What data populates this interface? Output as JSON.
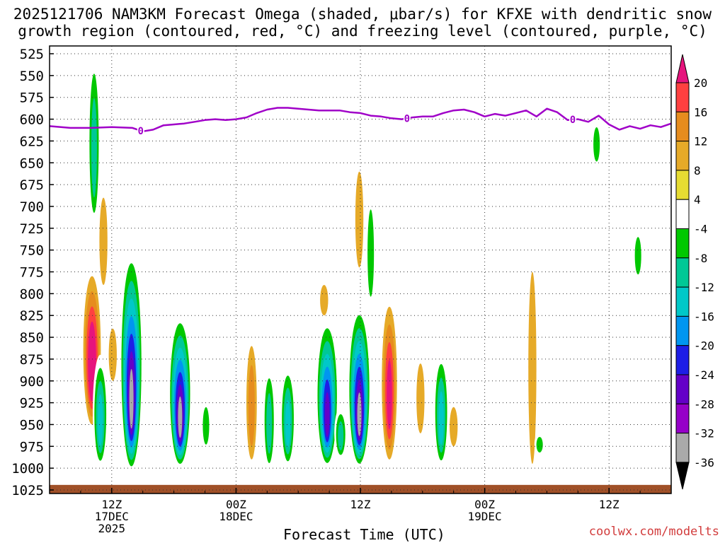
{
  "title_line1": "2025121706 NAM3KM Forecast Omega (shaded, μbar/s) for KFXE with dendritic snow",
  "title_line2": "growth region (contoured, red, °C) and freezing level (contoured, purple, °C)",
  "credit": "coolwx.com/modelts",
  "colors": {
    "omega": [
      "#aaaaaa",
      "#9600c8",
      "#6400c8",
      "#1e1ee6",
      "#0096f0",
      "#00c8c8",
      "#00c896",
      "#00c800",
      "#ffffff",
      "#e6dc32",
      "#e6aa28",
      "#e68c1e",
      "#ff4040",
      "#e6147d"
    ],
    "freezing_level": "#a000c8",
    "ground": "#a05028"
  },
  "chart_data": {
    "type": "heatmap",
    "title": "2025121706 NAM3KM Forecast Omega (shaded, μbar/s) for KFXE with dendritic snow growth region (contoured, red, °C) and freezing level (contoured, purple, °C)",
    "xlabel": "Forecast Time (UTC)",
    "ylabel": "",
    "x_ticks": [
      {
        "hours": 6,
        "lines": [
          "12Z",
          "17DEC",
          "2025"
        ]
      },
      {
        "hours": 18,
        "lines": [
          "00Z",
          "18DEC"
        ]
      },
      {
        "hours": 30,
        "lines": [
          "12Z"
        ]
      },
      {
        "hours": 42,
        "lines": [
          "00Z",
          "19DEC"
        ]
      },
      {
        "hours": 54,
        "lines": [
          "12Z"
        ]
      }
    ],
    "xlim_hours": [
      0,
      60
    ],
    "y_ticks": [
      525,
      550,
      575,
      600,
      625,
      650,
      675,
      700,
      725,
      750,
      775,
      800,
      825,
      850,
      875,
      900,
      925,
      950,
      975,
      1000,
      1025
    ],
    "ylim_hPa": [
      1025,
      520
    ],
    "grid": true,
    "colorbar": {
      "ticks": [
        20,
        16,
        12,
        8,
        4,
        -4,
        -8,
        -12,
        -16,
        -20,
        -24,
        -28,
        -32,
        -36
      ],
      "levels": [
        -36,
        -32,
        -28,
        -24,
        -20,
        -16,
        -12,
        -8,
        -4,
        4,
        8,
        12,
        16,
        20
      ]
    },
    "freezing_level": {
      "label": "0",
      "hours": [
        0,
        2,
        4,
        6,
        8,
        9,
        10,
        11,
        12,
        13,
        14,
        15,
        16,
        17,
        18,
        19,
        20,
        21,
        22,
        23,
        24,
        25,
        26,
        27,
        28,
        29,
        30,
        31,
        32,
        33,
        34,
        35,
        36,
        37,
        38,
        39,
        40,
        41,
        42,
        43,
        44,
        45,
        46,
        47,
        48,
        49,
        50,
        51,
        52,
        53,
        54,
        55,
        56,
        57,
        58,
        59,
        60
      ],
      "pressure": [
        608,
        610,
        610,
        609,
        610,
        614,
        612,
        607,
        606,
        605,
        603,
        601,
        600,
        601,
        600,
        598,
        593,
        589,
        587,
        587,
        588,
        589,
        590,
        590,
        590,
        592,
        593,
        596,
        597,
        599,
        600,
        598,
        597,
        597,
        593,
        590,
        589,
        592,
        597,
        594,
        596,
        593,
        590,
        597,
        588,
        592,
        601,
        600,
        603,
        596,
        606,
        612,
        608,
        611,
        607,
        609,
        605
      ]
    },
    "ground_level_hPa": 1020,
    "omega_cells": [
      {
        "h": 4.3,
        "p_top": 520,
        "p_bot": 725,
        "peak": -12
      },
      {
        "h": 4.1,
        "p_top": 780,
        "p_bot": 950,
        "peak": 20
      },
      {
        "h": 5.2,
        "p_top": 690,
        "p_bot": 790,
        "peak": 4
      },
      {
        "h": 4.9,
        "p_top": 870,
        "p_bot": 1000,
        "peak": -16
      },
      {
        "h": 7.9,
        "p_top": 745,
        "p_bot": 1005,
        "peak": -32
      },
      {
        "h": 6.1,
        "p_top": 840,
        "p_bot": 900,
        "peak": 4
      },
      {
        "h": 12.6,
        "p_top": 820,
        "p_bot": 1000,
        "peak": -32
      },
      {
        "h": 15.1,
        "p_top": 920,
        "p_bot": 980,
        "peak": -8
      },
      {
        "h": 19.5,
        "p_top": 860,
        "p_bot": 990,
        "peak": 8
      },
      {
        "h": 21.2,
        "p_top": 880,
        "p_bot": 1005,
        "peak": -12
      },
      {
        "h": 23.0,
        "p_top": 880,
        "p_bot": 1000,
        "peak": -16
      },
      {
        "h": 26.5,
        "p_top": 790,
        "p_bot": 825,
        "peak": 4
      },
      {
        "h": 26.8,
        "p_top": 825,
        "p_bot": 1000,
        "peak": -28
      },
      {
        "h": 28.1,
        "p_top": 930,
        "p_bot": 990,
        "peak": -12
      },
      {
        "h": 29.9,
        "p_top": 660,
        "p_bot": 770,
        "peak": 4
      },
      {
        "h": 29.9,
        "p_top": 810,
        "p_bot": 1000,
        "peak": -32
      },
      {
        "h": 31.0,
        "p_top": 680,
        "p_bot": 820,
        "peak": -8
      },
      {
        "h": 32.8,
        "p_top": 815,
        "p_bot": 990,
        "peak": 16
      },
      {
        "h": 35.8,
        "p_top": 880,
        "p_bot": 960,
        "peak": 4
      },
      {
        "h": 37.8,
        "p_top": 865,
        "p_bot": 1000,
        "peak": -16
      },
      {
        "h": 39.0,
        "p_top": 930,
        "p_bot": 975,
        "peak": 4
      },
      {
        "h": 46.6,
        "p_top": 775,
        "p_bot": 995,
        "peak": 4
      },
      {
        "h": 47.3,
        "p_top": 960,
        "p_bot": 985,
        "peak": -8
      },
      {
        "h": 52.8,
        "p_top": 600,
        "p_bot": 655,
        "peak": -8
      },
      {
        "h": 56.8,
        "p_top": 725,
        "p_bot": 785,
        "peak": -8
      }
    ]
  }
}
